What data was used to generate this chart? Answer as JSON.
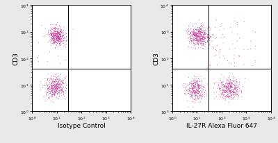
{
  "bg_color": "#e8e8e8",
  "plot_bg": "#ffffff",
  "dot_color": "#cc3399",
  "dot_alpha": 0.6,
  "dot_size": 0.8,
  "xlim": [
    1.0,
    10000.0
  ],
  "ylim": [
    1.0,
    10000.0
  ],
  "xlabel1": "Isotype Control",
  "xlabel2": "IL-27R Alexa Fluor 647",
  "ylabel": "CD3",
  "gate_x": 30.0,
  "gate_y": 40.0,
  "tick_fontsize": 4.5,
  "label_fontsize": 6.5
}
